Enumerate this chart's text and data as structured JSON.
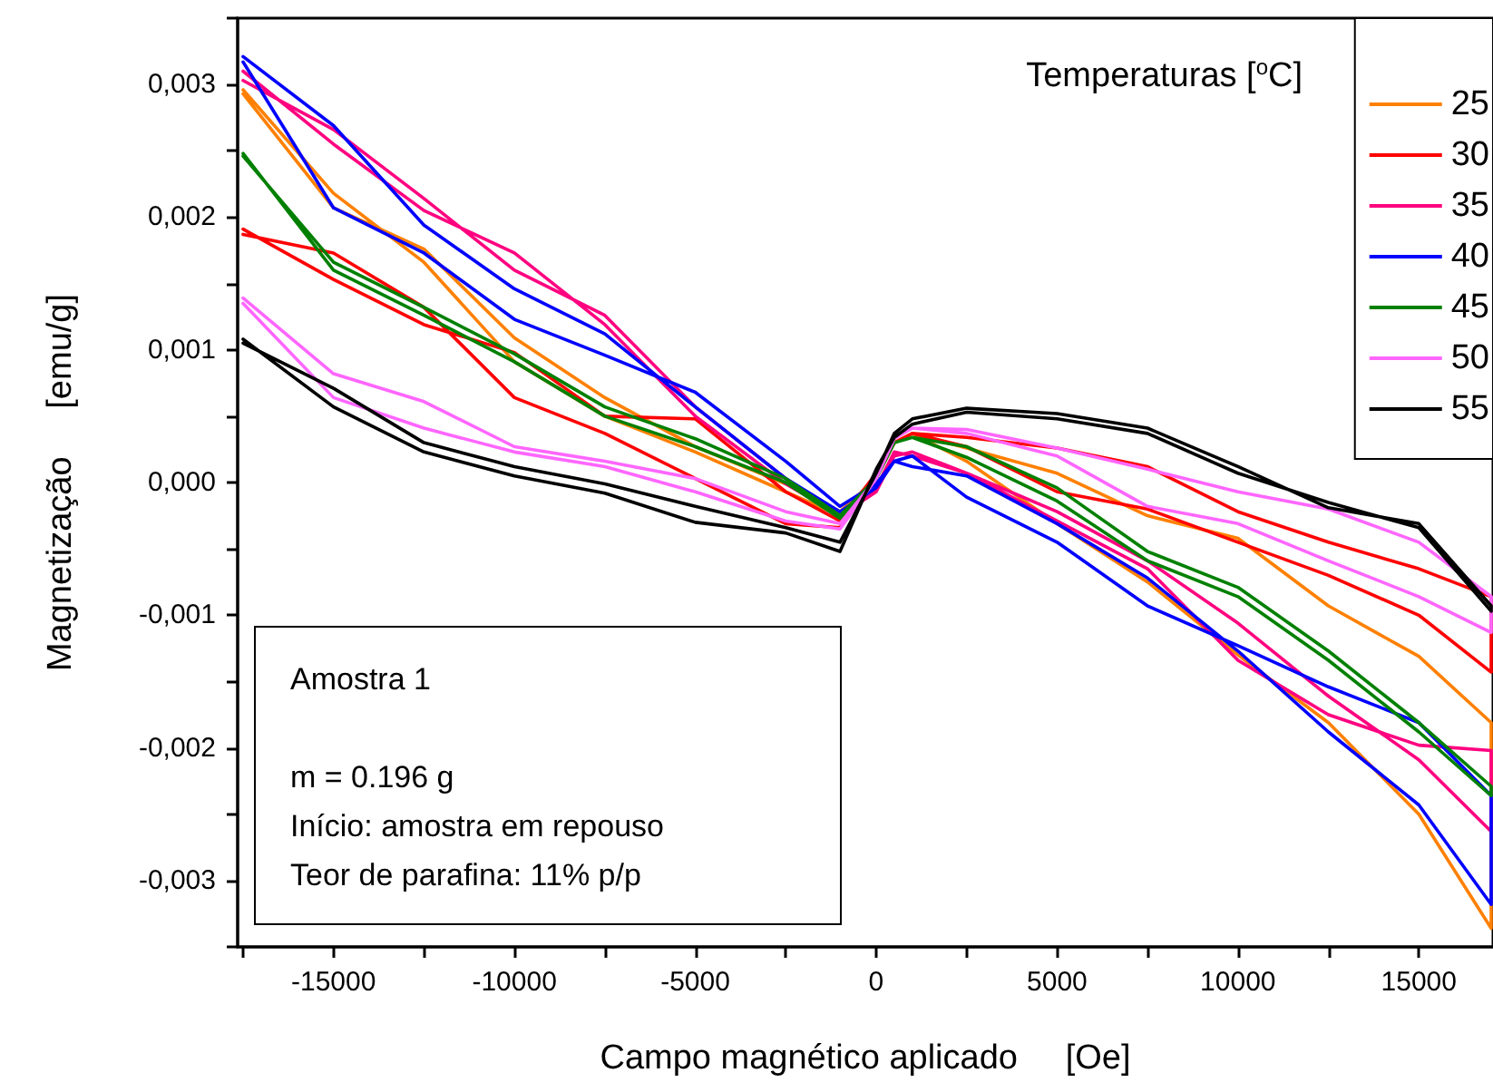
{
  "chart_data": {
    "type": "line",
    "xlabel": "Campo magnético aplicado     [Oe]",
    "ylabel": "Magnetização     [emu/g]",
    "legend_title": "Temperaturas [$^{o}$C]",
    "annotations": [
      "Amostra 1",
      "m = 0.196 g",
      "Início: amostra em repouso",
      "Teor de parafina: 11% p/p"
    ],
    "x": [
      -17500,
      -15000,
      -12500,
      -10000,
      -7500,
      -5000,
      -2500,
      -1000,
      0,
      500,
      1000,
      2500,
      5000,
      7500,
      10000,
      12500,
      15000,
      17000,
      17000,
      15000,
      12500,
      10000,
      7500,
      5000,
      2500,
      1000,
      500,
      0,
      -1000,
      -2500,
      -5000,
      -7500,
      -10000,
      -12500,
      -15000,
      -17500
    ],
    "series": [
      {
        "name": "25",
        "color": "#ff8000",
        "values": [
          0.00296,
          0.00218,
          0.00166,
          0.00091,
          0.0005,
          0.00023,
          -7e-05,
          -0.00025,
          3e-05,
          0.0003,
          0.00037,
          0.00016,
          -0.00031,
          -0.00075,
          -0.0013,
          -0.00181,
          -0.0025,
          -0.00336,
          -0.00181,
          -0.00131,
          -0.00093,
          -0.00042,
          -0.00025,
          7e-05,
          0.00026,
          0.00037,
          0.0003,
          3e-05,
          -0.00022,
          -1e-05,
          0.00027,
          0.00064,
          0.00109,
          0.00176,
          0.00207,
          0.00293
        ]
      },
      {
        "name": "30",
        "color": "#ff0000",
        "values": [
          0.00191,
          0.00153,
          0.00119,
          0.00098,
          0.0005,
          0.00048,
          -7e-05,
          -0.00029,
          7e-05,
          0.0003,
          0.00037,
          0.00027,
          -7e-05,
          -0.0002,
          -0.00045,
          -0.0007,
          -0.001,
          -0.00143,
          -0.00086,
          -0.00065,
          -0.00045,
          -0.00022,
          0.00012,
          0.00026,
          0.00034,
          0.00037,
          0.0003,
          7e-05,
          -0.00034,
          -0.00031,
          3e-05,
          0.00037,
          0.00064,
          0.00132,
          0.00173,
          0.00187
        ]
      },
      {
        "name": "35",
        "color": "#ff0080",
        "values": [
          0.0031,
          0.00255,
          0.00205,
          0.00173,
          0.00119,
          0.0005,
          -1e-05,
          -0.00025,
          -4e-05,
          0.00023,
          0.0002,
          7e-05,
          -0.00022,
          -0.00059,
          -0.00106,
          -0.00161,
          -0.00209,
          -0.00263,
          -0.00202,
          -0.00198,
          -0.00175,
          -0.00134,
          -0.00065,
          -0.00029,
          7e-05,
          0.00023,
          0.0002,
          -7e-05,
          -0.00025,
          3e-05,
          0.00057,
          0.00126,
          0.0016,
          0.00214,
          0.00266,
          0.00303
        ]
      },
      {
        "name": "40",
        "color": "#0000ff",
        "values": [
          0.00317,
          0.00207,
          0.00173,
          0.00123,
          0.00096,
          0.00068,
          0.00016,
          -0.00018,
          -1e-05,
          0.00016,
          0.00012,
          5e-05,
          -0.00031,
          -0.00072,
          -0.00127,
          -0.00188,
          -0.00243,
          -0.00318,
          -0.00236,
          -0.00181,
          -0.00154,
          -0.00123,
          -0.00093,
          -0.00045,
          -0.00011,
          0.0002,
          0.00016,
          -4e-05,
          -0.00022,
          3e-05,
          0.00057,
          0.00112,
          0.00146,
          0.00194,
          0.00269,
          0.00321
        ]
      },
      {
        "name": "45",
        "color": "#008000",
        "values": [
          0.00248,
          0.0016,
          0.00126,
          0.00091,
          0.0005,
          0.00027,
          0,
          -0.00027,
          3e-05,
          0.0003,
          0.00034,
          0.00019,
          -0.00014,
          -0.00059,
          -0.00086,
          -0.00134,
          -0.00188,
          -0.00236,
          -0.00229,
          -0.00181,
          -0.00127,
          -0.00079,
          -0.00052,
          -4e-05,
          0.00027,
          0.00034,
          0.0003,
          3e-05,
          -0.00025,
          3e-05,
          0.00033,
          0.00057,
          0.00097,
          0.00132,
          0.00166,
          0.00246
        ]
      },
      {
        "name": "50",
        "color": "#ff66ff",
        "values": [
          0.00139,
          0.00082,
          0.00061,
          0.00027,
          0.00016,
          3e-05,
          -0.00022,
          -0.00031,
          3e-05,
          0.00033,
          0.00041,
          0.00037,
          0.0002,
          -0.00018,
          -0.00031,
          -0.00059,
          -0.00086,
          -0.00113,
          -0.00086,
          -0.00045,
          -0.0002,
          -7e-05,
          0.0001,
          0.00026,
          0.0004,
          0.00041,
          0.00033,
          3e-05,
          -0.00035,
          -0.00029,
          -7e-05,
          0.00012,
          0.00023,
          0.00041,
          0.00064,
          0.00135
        ]
      },
      {
        "name": "55",
        "color": "#000000",
        "values": [
          0.00108,
          0.00057,
          0.00023,
          5e-05,
          -8e-05,
          -0.0003,
          -0.00038,
          -0.00052,
          0.0001,
          0.00034,
          0.00044,
          0.00053,
          0.00048,
          0.00037,
          7e-05,
          -0.00015,
          -0.00034,
          -0.00097,
          -0.00093,
          -0.00031,
          -0.00019,
          0.00012,
          0.00041,
          0.00052,
          0.00056,
          0.00048,
          0.00037,
          7e-05,
          -0.00045,
          -0.00034,
          -0.00018,
          -1e-05,
          0.00012,
          0.0003,
          0.00071,
          0.00105
        ]
      }
    ],
    "xlim": [
      -17650,
      17050
    ],
    "xticks": [
      {
        "value": -17500,
        "label": null
      },
      -15000,
      {
        "value": -12500,
        "label": null
      },
      -10000,
      {
        "value": -7500,
        "label": null
      },
      -5000,
      {
        "value": -2500,
        "label": null
      },
      0,
      {
        "value": 2500,
        "label": null
      },
      5000,
      {
        "value": 7500,
        "label": null
      },
      10000,
      {
        "value": 12500,
        "label": null
      },
      15000
    ],
    "ylim": [
      -0.0035,
      0.0035
    ],
    "yticks": [
      {
        "value": -0.0035,
        "label": null
      },
      {
        "value": -0.003,
        "label": "-0,003"
      },
      {
        "value": -0.0025,
        "label": null
      },
      {
        "value": -0.002,
        "label": "-0,002"
      },
      {
        "value": -0.0015,
        "label": null
      },
      {
        "value": -0.001,
        "label": "-0,001"
      },
      {
        "value": -0.0005,
        "label": null
      },
      {
        "value": 0,
        "label": "0,000"
      },
      {
        "value": 0.0005,
        "label": null
      },
      {
        "value": 0.001,
        "label": "0,001"
      },
      {
        "value": 0.0015,
        "label": null
      },
      {
        "value": 0.002,
        "label": "0,002"
      },
      {
        "value": 0.0025,
        "label": null
      },
      {
        "value": 0.003,
        "label": "0,003"
      },
      {
        "value": 0.0035,
        "label": null
      }
    ],
    "grid": false,
    "legend": "top right",
    "marker": "none",
    "line_style": "solid"
  }
}
